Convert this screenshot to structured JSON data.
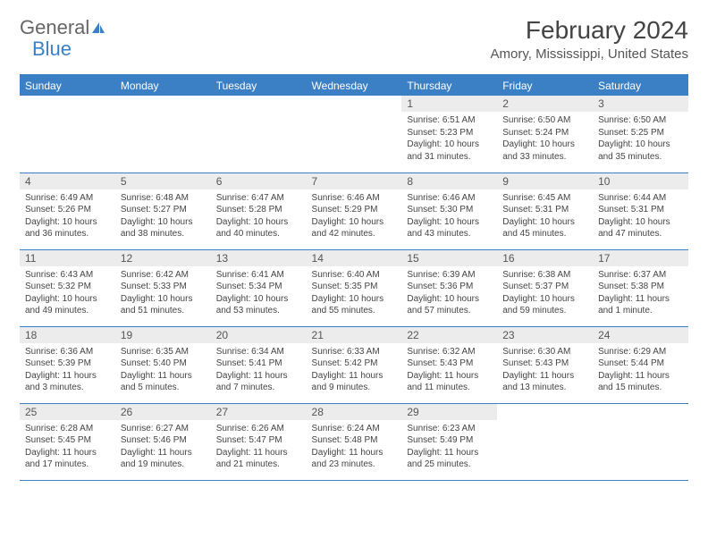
{
  "brand": {
    "part1": "General",
    "part2": "Blue"
  },
  "title": "February 2024",
  "subtitle": "Amory, Mississippi, United States",
  "colors": {
    "accent": "#3b7fc4",
    "dayHeaderBg": "#ececec",
    "text": "#444444",
    "background": "#ffffff"
  },
  "calendar": {
    "type": "table",
    "columns": [
      "Sunday",
      "Monday",
      "Tuesday",
      "Wednesday",
      "Thursday",
      "Friday",
      "Saturday"
    ],
    "startOffset": 4,
    "days": [
      {
        "n": "1",
        "sunrise": "Sunrise: 6:51 AM",
        "sunset": "Sunset: 5:23 PM",
        "daylight": "Daylight: 10 hours and 31 minutes."
      },
      {
        "n": "2",
        "sunrise": "Sunrise: 6:50 AM",
        "sunset": "Sunset: 5:24 PM",
        "daylight": "Daylight: 10 hours and 33 minutes."
      },
      {
        "n": "3",
        "sunrise": "Sunrise: 6:50 AM",
        "sunset": "Sunset: 5:25 PM",
        "daylight": "Daylight: 10 hours and 35 minutes."
      },
      {
        "n": "4",
        "sunrise": "Sunrise: 6:49 AM",
        "sunset": "Sunset: 5:26 PM",
        "daylight": "Daylight: 10 hours and 36 minutes."
      },
      {
        "n": "5",
        "sunrise": "Sunrise: 6:48 AM",
        "sunset": "Sunset: 5:27 PM",
        "daylight": "Daylight: 10 hours and 38 minutes."
      },
      {
        "n": "6",
        "sunrise": "Sunrise: 6:47 AM",
        "sunset": "Sunset: 5:28 PM",
        "daylight": "Daylight: 10 hours and 40 minutes."
      },
      {
        "n": "7",
        "sunrise": "Sunrise: 6:46 AM",
        "sunset": "Sunset: 5:29 PM",
        "daylight": "Daylight: 10 hours and 42 minutes."
      },
      {
        "n": "8",
        "sunrise": "Sunrise: 6:46 AM",
        "sunset": "Sunset: 5:30 PM",
        "daylight": "Daylight: 10 hours and 43 minutes."
      },
      {
        "n": "9",
        "sunrise": "Sunrise: 6:45 AM",
        "sunset": "Sunset: 5:31 PM",
        "daylight": "Daylight: 10 hours and 45 minutes."
      },
      {
        "n": "10",
        "sunrise": "Sunrise: 6:44 AM",
        "sunset": "Sunset: 5:31 PM",
        "daylight": "Daylight: 10 hours and 47 minutes."
      },
      {
        "n": "11",
        "sunrise": "Sunrise: 6:43 AM",
        "sunset": "Sunset: 5:32 PM",
        "daylight": "Daylight: 10 hours and 49 minutes."
      },
      {
        "n": "12",
        "sunrise": "Sunrise: 6:42 AM",
        "sunset": "Sunset: 5:33 PM",
        "daylight": "Daylight: 10 hours and 51 minutes."
      },
      {
        "n": "13",
        "sunrise": "Sunrise: 6:41 AM",
        "sunset": "Sunset: 5:34 PM",
        "daylight": "Daylight: 10 hours and 53 minutes."
      },
      {
        "n": "14",
        "sunrise": "Sunrise: 6:40 AM",
        "sunset": "Sunset: 5:35 PM",
        "daylight": "Daylight: 10 hours and 55 minutes."
      },
      {
        "n": "15",
        "sunrise": "Sunrise: 6:39 AM",
        "sunset": "Sunset: 5:36 PM",
        "daylight": "Daylight: 10 hours and 57 minutes."
      },
      {
        "n": "16",
        "sunrise": "Sunrise: 6:38 AM",
        "sunset": "Sunset: 5:37 PM",
        "daylight": "Daylight: 10 hours and 59 minutes."
      },
      {
        "n": "17",
        "sunrise": "Sunrise: 6:37 AM",
        "sunset": "Sunset: 5:38 PM",
        "daylight": "Daylight: 11 hours and 1 minute."
      },
      {
        "n": "18",
        "sunrise": "Sunrise: 6:36 AM",
        "sunset": "Sunset: 5:39 PM",
        "daylight": "Daylight: 11 hours and 3 minutes."
      },
      {
        "n": "19",
        "sunrise": "Sunrise: 6:35 AM",
        "sunset": "Sunset: 5:40 PM",
        "daylight": "Daylight: 11 hours and 5 minutes."
      },
      {
        "n": "20",
        "sunrise": "Sunrise: 6:34 AM",
        "sunset": "Sunset: 5:41 PM",
        "daylight": "Daylight: 11 hours and 7 minutes."
      },
      {
        "n": "21",
        "sunrise": "Sunrise: 6:33 AM",
        "sunset": "Sunset: 5:42 PM",
        "daylight": "Daylight: 11 hours and 9 minutes."
      },
      {
        "n": "22",
        "sunrise": "Sunrise: 6:32 AM",
        "sunset": "Sunset: 5:43 PM",
        "daylight": "Daylight: 11 hours and 11 minutes."
      },
      {
        "n": "23",
        "sunrise": "Sunrise: 6:30 AM",
        "sunset": "Sunset: 5:43 PM",
        "daylight": "Daylight: 11 hours and 13 minutes."
      },
      {
        "n": "24",
        "sunrise": "Sunrise: 6:29 AM",
        "sunset": "Sunset: 5:44 PM",
        "daylight": "Daylight: 11 hours and 15 minutes."
      },
      {
        "n": "25",
        "sunrise": "Sunrise: 6:28 AM",
        "sunset": "Sunset: 5:45 PM",
        "daylight": "Daylight: 11 hours and 17 minutes."
      },
      {
        "n": "26",
        "sunrise": "Sunrise: 6:27 AM",
        "sunset": "Sunset: 5:46 PM",
        "daylight": "Daylight: 11 hours and 19 minutes."
      },
      {
        "n": "27",
        "sunrise": "Sunrise: 6:26 AM",
        "sunset": "Sunset: 5:47 PM",
        "daylight": "Daylight: 11 hours and 21 minutes."
      },
      {
        "n": "28",
        "sunrise": "Sunrise: 6:24 AM",
        "sunset": "Sunset: 5:48 PM",
        "daylight": "Daylight: 11 hours and 23 minutes."
      },
      {
        "n": "29",
        "sunrise": "Sunrise: 6:23 AM",
        "sunset": "Sunset: 5:49 PM",
        "daylight": "Daylight: 11 hours and 25 minutes."
      }
    ]
  }
}
